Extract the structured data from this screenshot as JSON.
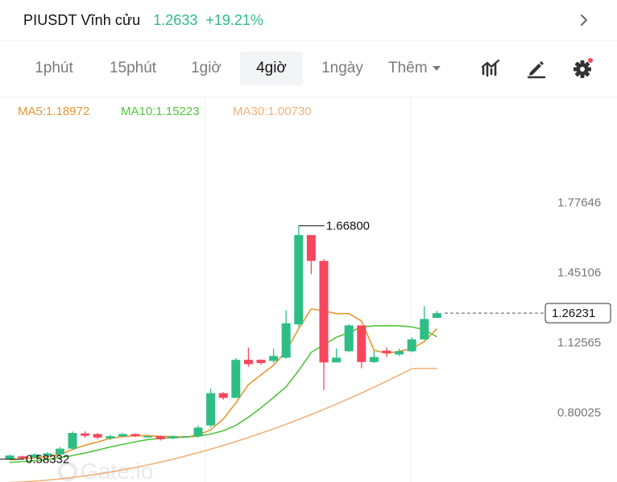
{
  "header": {
    "symbol": "PIUSDT Vĩnh cửu",
    "last_price": "1.2633",
    "change_pct": "+19.21%",
    "chevron_icon": "chevron-right-icon"
  },
  "intervals": [
    {
      "label": "1phút",
      "active": false
    },
    {
      "label": "15phút",
      "active": false
    },
    {
      "label": "1giờ",
      "active": false
    },
    {
      "label": "4giờ",
      "active": true
    },
    {
      "label": "1ngày",
      "active": false
    }
  ],
  "more": {
    "label": "Thêm"
  },
  "tools": [
    {
      "icon": "indicators-icon"
    },
    {
      "icon": "draw-pen-icon"
    },
    {
      "icon": "settings-gear-icon",
      "notification_dot": true
    }
  ],
  "indicators": {
    "ma5": "MA5:1.18972",
    "ma10": "MA10:1.15223",
    "ma30": "MA30:1.00730"
  },
  "colors": {
    "up": "#2ebd85",
    "down": "#f6465d",
    "ma5": "#e8952f",
    "ma10": "#52c43f",
    "ma30": "#f0b27a",
    "accent_green": "#2ebd85"
  },
  "watermark": "Gate.io",
  "chart_data": {
    "type": "candlestick",
    "y_axis_labels": [
      "1.77646",
      "1.45106",
      "1.12565",
      "0.80025"
    ],
    "ylim": [
      0.47,
      1.85
    ],
    "grid": true,
    "current_price_label": "1.26231",
    "current_price": 1.2623,
    "high_marker_label": "1.66800",
    "high_marker_value": 1.668,
    "low_marker_label": "0.58332",
    "low_marker_value": 0.5833,
    "candles": [
      {
        "o": 0.585,
        "c": 0.6,
        "h": 0.605,
        "l": 0.583
      },
      {
        "o": 0.596,
        "c": 0.588,
        "h": 0.6,
        "l": 0.585
      },
      {
        "o": 0.592,
        "c": 0.605,
        "h": 0.61,
        "l": 0.586
      },
      {
        "o": 0.6,
        "c": 0.61,
        "h": 0.615,
        "l": 0.594
      },
      {
        "o": 0.605,
        "c": 0.632,
        "h": 0.64,
        "l": 0.6
      },
      {
        "o": 0.632,
        "c": 0.705,
        "h": 0.712,
        "l": 0.628
      },
      {
        "o": 0.703,
        "c": 0.692,
        "h": 0.712,
        "l": 0.683
      },
      {
        "o": 0.7,
        "c": 0.684,
        "h": 0.705,
        "l": 0.676
      },
      {
        "o": 0.68,
        "c": 0.69,
        "h": 0.697,
        "l": 0.672
      },
      {
        "o": 0.69,
        "c": 0.7,
        "h": 0.704,
        "l": 0.686
      },
      {
        "o": 0.7,
        "c": 0.69,
        "h": 0.703,
        "l": 0.686
      },
      {
        "o": 0.688,
        "c": 0.69,
        "h": 0.694,
        "l": 0.683
      },
      {
        "o": 0.69,
        "c": 0.676,
        "h": 0.693,
        "l": 0.67
      },
      {
        "o": 0.68,
        "c": 0.69,
        "h": 0.692,
        "l": 0.676
      },
      {
        "o": 0.69,
        "c": 0.69,
        "h": 0.692,
        "l": 0.687
      },
      {
        "o": 0.69,
        "c": 0.73,
        "h": 0.74,
        "l": 0.684
      },
      {
        "o": 0.74,
        "c": 0.89,
        "h": 0.912,
        "l": 0.73
      },
      {
        "o": 0.89,
        "c": 0.868,
        "h": 0.895,
        "l": 0.86
      },
      {
        "o": 0.868,
        "c": 1.045,
        "h": 1.053,
        "l": 0.868
      },
      {
        "o": 1.045,
        "c": 1.025,
        "h": 1.102,
        "l": 1.013
      },
      {
        "o": 1.045,
        "c": 1.03,
        "h": 1.047,
        "l": 1.022
      },
      {
        "o": 1.04,
        "c": 1.063,
        "h": 1.097,
        "l": 1.03
      },
      {
        "o": 1.055,
        "c": 1.215,
        "h": 1.276,
        "l": 1.05
      },
      {
        "o": 1.21,
        "c": 1.625,
        "h": 1.668,
        "l": 1.198
      },
      {
        "o": 1.625,
        "c": 1.505,
        "h": 1.625,
        "l": 1.443
      },
      {
        "o": 1.505,
        "c": 1.033,
        "h": 1.513,
        "l": 0.905
      },
      {
        "o": 1.033,
        "c": 1.055,
        "h": 1.098,
        "l": 1.033
      },
      {
        "o": 1.085,
        "c": 1.205,
        "h": 1.21,
        "l": 1.08
      },
      {
        "o": 1.205,
        "c": 1.035,
        "h": 1.205,
        "l": 1.006
      },
      {
        "o": 1.035,
        "c": 1.058,
        "h": 1.088,
        "l": 1.03
      },
      {
        "o": 1.088,
        "c": 1.076,
        "h": 1.103,
        "l": 1.058
      },
      {
        "o": 1.07,
        "c": 1.085,
        "h": 1.096,
        "l": 1.062
      },
      {
        "o": 1.085,
        "c": 1.14,
        "h": 1.15,
        "l": 1.08
      },
      {
        "o": 1.14,
        "c": 1.235,
        "h": 1.295,
        "l": 1.138
      },
      {
        "o": 1.24,
        "c": 1.262,
        "h": 1.272,
        "l": 1.24
      }
    ],
    "ma5": [
      0.58,
      0.585,
      0.59,
      0.595,
      0.605,
      0.628,
      0.648,
      0.663,
      0.68,
      0.688,
      0.692,
      0.693,
      0.689,
      0.688,
      0.686,
      0.695,
      0.72,
      0.77,
      0.845,
      0.93,
      0.975,
      1.02,
      1.085,
      1.19,
      1.282,
      1.272,
      1.26,
      1.26,
      1.225,
      1.09,
      1.075,
      1.085,
      1.097,
      1.13,
      1.19
    ],
    "ma10": [
      0.568,
      0.572,
      0.576,
      0.582,
      0.59,
      0.6,
      0.612,
      0.625,
      0.64,
      0.652,
      0.664,
      0.674,
      0.68,
      0.683,
      0.686,
      0.69,
      0.7,
      0.715,
      0.74,
      0.778,
      0.822,
      0.87,
      0.92,
      0.995,
      1.08,
      1.115,
      1.15,
      1.172,
      1.198,
      1.203,
      1.204,
      1.203,
      1.198,
      1.185,
      1.152
    ]
  }
}
